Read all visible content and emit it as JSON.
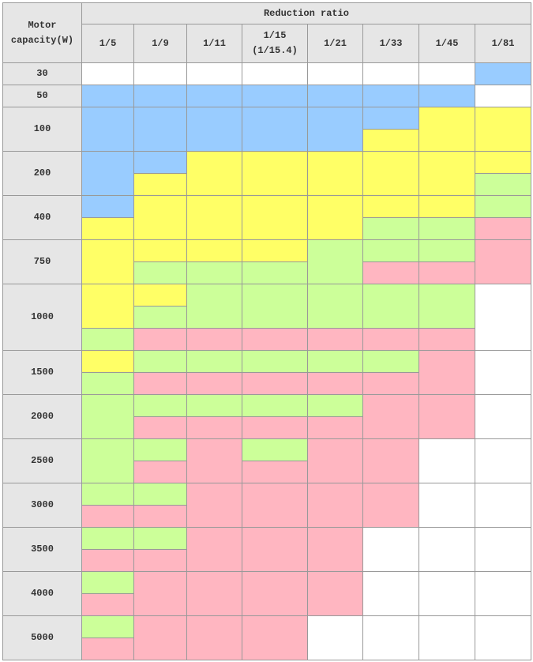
{
  "table": {
    "corner": "Motor capacity(W)",
    "group_header": "Reduction ratio",
    "columns": [
      "1/5",
      "1/9",
      "1/11",
      "1/15 (1/15.4)",
      "1/21",
      "1/33",
      "1/45",
      "1/81"
    ],
    "rows": [
      {
        "label": "30",
        "cells": [
          [
            "#ffffff"
          ],
          [
            "#ffffff"
          ],
          [
            "#ffffff"
          ],
          [
            "#ffffff"
          ],
          [
            "#ffffff"
          ],
          [
            "#ffffff"
          ],
          [
            "#ffffff"
          ],
          [
            "#99ccff"
          ]
        ]
      },
      {
        "label": "50",
        "cells": [
          [
            "#99ccff"
          ],
          [
            "#99ccff"
          ],
          [
            "#99ccff"
          ],
          [
            "#99ccff"
          ],
          [
            "#99ccff"
          ],
          [
            "#99ccff"
          ],
          [
            "#99ccff"
          ],
          [
            "#ffffff"
          ]
        ]
      },
      {
        "label": "100",
        "cells": [
          [
            "#99ccff",
            "#99ccff"
          ],
          [
            "#99ccff",
            "#99ccff"
          ],
          [
            "#99ccff",
            "#99ccff"
          ],
          [
            "#99ccff",
            "#99ccff"
          ],
          [
            "#99ccff",
            "#99ccff"
          ],
          [
            "#99ccff",
            "#ffff66"
          ],
          [
            "#ffff66",
            "#ffff66"
          ],
          [
            "#ffff66",
            "#ffff66"
          ]
        ]
      },
      {
        "label": "200",
        "cells": [
          [
            "#99ccff",
            "#99ccff"
          ],
          [
            "#99ccff",
            "#ffff66"
          ],
          [
            "#ffff66",
            "#ffff66"
          ],
          [
            "#ffff66",
            "#ffff66"
          ],
          [
            "#ffff66",
            "#ffff66"
          ],
          [
            "#ffff66",
            "#ffff66"
          ],
          [
            "#ffff66",
            "#ffff66"
          ],
          [
            "#ffff66",
            "#ccff99"
          ]
        ]
      },
      {
        "label": "400",
        "cells": [
          [
            "#99ccff",
            "#ffff66"
          ],
          [
            "#ffff66",
            "#ffff66"
          ],
          [
            "#ffff66",
            "#ffff66"
          ],
          [
            "#ffff66",
            "#ffff66"
          ],
          [
            "#ffff66",
            "#ffff66"
          ],
          [
            "#ffff66",
            "#ccff99"
          ],
          [
            "#ffff66",
            "#ccff99"
          ],
          [
            "#ccff99",
            "#ffb6c1"
          ]
        ]
      },
      {
        "label": "750",
        "cells": [
          [
            "#ffff66",
            "#ffff66"
          ],
          [
            "#ffff66",
            "#ccff99"
          ],
          [
            "#ffff66",
            "#ccff99"
          ],
          [
            "#ffff66",
            "#ccff99"
          ],
          [
            "#ccff99",
            "#ccff99"
          ],
          [
            "#ccff99",
            "#ffb6c1"
          ],
          [
            "#ccff99",
            "#ffb6c1"
          ],
          [
            "#ffb6c1",
            "#ffb6c1"
          ]
        ]
      },
      {
        "label": "1000",
        "cells": [
          [
            "#ffff66",
            "#ffff66",
            "#ccff99"
          ],
          [
            "#ffff66",
            "#ccff99",
            "#ffb6c1"
          ],
          [
            "#ccff99",
            "#ccff99",
            "#ffb6c1"
          ],
          [
            "#ccff99",
            "#ccff99",
            "#ffb6c1"
          ],
          [
            "#ccff99",
            "#ccff99",
            "#ffb6c1"
          ],
          [
            "#ccff99",
            "#ccff99",
            "#ffb6c1"
          ],
          [
            "#ccff99",
            "#ccff99",
            "#ffb6c1"
          ],
          [
            "#ffffff",
            "#ffffff",
            "#ffffff"
          ]
        ]
      },
      {
        "label": "1500",
        "cells": [
          [
            "#ffff66",
            "#ccff99"
          ],
          [
            "#ccff99",
            "#ffb6c1"
          ],
          [
            "#ccff99",
            "#ffb6c1"
          ],
          [
            "#ccff99",
            "#ffb6c1"
          ],
          [
            "#ccff99",
            "#ffb6c1"
          ],
          [
            "#ccff99",
            "#ffb6c1"
          ],
          [
            "#ffb6c1",
            "#ffb6c1"
          ],
          [
            "#ffffff",
            "#ffffff"
          ]
        ]
      },
      {
        "label": "2000",
        "cells": [
          [
            "#ccff99",
            "#ccff99"
          ],
          [
            "#ccff99",
            "#ffb6c1"
          ],
          [
            "#ccff99",
            "#ffb6c1"
          ],
          [
            "#ccff99",
            "#ffb6c1"
          ],
          [
            "#ccff99",
            "#ffb6c1"
          ],
          [
            "#ffb6c1",
            "#ffb6c1"
          ],
          [
            "#ffb6c1",
            "#ffb6c1"
          ],
          [
            "#ffffff",
            "#ffffff"
          ]
        ]
      },
      {
        "label": "2500",
        "cells": [
          [
            "#ccff99",
            "#ccff99"
          ],
          [
            "#ccff99",
            "#ffb6c1"
          ],
          [
            "#ffb6c1",
            "#ffb6c1"
          ],
          [
            "#ccff99",
            "#ffb6c1"
          ],
          [
            "#ffb6c1",
            "#ffb6c1"
          ],
          [
            "#ffb6c1",
            "#ffb6c1"
          ],
          [
            "#ffffff",
            "#ffffff"
          ],
          [
            "#ffffff",
            "#ffffff"
          ]
        ]
      },
      {
        "label": "3000",
        "cells": [
          [
            "#ccff99",
            "#ffb6c1"
          ],
          [
            "#ccff99",
            "#ffb6c1"
          ],
          [
            "#ffb6c1",
            "#ffb6c1"
          ],
          [
            "#ffb6c1",
            "#ffb6c1"
          ],
          [
            "#ffb6c1",
            "#ffb6c1"
          ],
          [
            "#ffb6c1",
            "#ffb6c1"
          ],
          [
            "#ffffff",
            "#ffffff"
          ],
          [
            "#ffffff",
            "#ffffff"
          ]
        ]
      },
      {
        "label": "3500",
        "cells": [
          [
            "#ccff99",
            "#ffb6c1"
          ],
          [
            "#ccff99",
            "#ffb6c1"
          ],
          [
            "#ffb6c1",
            "#ffb6c1"
          ],
          [
            "#ffb6c1",
            "#ffb6c1"
          ],
          [
            "#ffb6c1",
            "#ffb6c1"
          ],
          [
            "#ffffff",
            "#ffffff"
          ],
          [
            "#ffffff",
            "#ffffff"
          ],
          [
            "#ffffff",
            "#ffffff"
          ]
        ]
      },
      {
        "label": "4000",
        "cells": [
          [
            "#ccff99",
            "#ffb6c1"
          ],
          [
            "#ffb6c1",
            "#ffb6c1"
          ],
          [
            "#ffb6c1",
            "#ffb6c1"
          ],
          [
            "#ffb6c1",
            "#ffb6c1"
          ],
          [
            "#ffb6c1",
            "#ffb6c1"
          ],
          [
            "#ffffff",
            "#ffffff"
          ],
          [
            "#ffffff",
            "#ffffff"
          ],
          [
            "#ffffff",
            "#ffffff"
          ]
        ]
      },
      {
        "label": "5000",
        "cells": [
          [
            "#ccff99",
            "#ffb6c1"
          ],
          [
            "#ffb6c1",
            "#ffb6c1"
          ],
          [
            "#ffb6c1",
            "#ffb6c1"
          ],
          [
            "#ffb6c1",
            "#ffb6c1"
          ],
          [
            "#ffffff",
            "#ffffff"
          ],
          [
            "#ffffff",
            "#ffffff"
          ],
          [
            "#ffffff",
            "#ffffff"
          ],
          [
            "#ffffff",
            "#ffffff"
          ]
        ]
      }
    ]
  }
}
